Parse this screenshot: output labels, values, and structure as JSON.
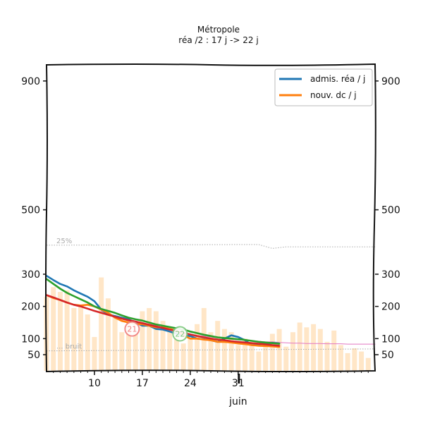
{
  "chart_data": {
    "type": "line",
    "title": "Métropole",
    "subtitle": "réa /2 : 17 j -> 22 j",
    "ylim": [
      0,
      950
    ],
    "xlim": [
      3,
      51
    ],
    "y_ticks": [
      50,
      100,
      200,
      300,
      500,
      900
    ],
    "x_ticks": [
      {
        "x": 10,
        "label": "10"
      },
      {
        "x": 17,
        "label": "17"
      },
      {
        "x": 24,
        "label": "24"
      },
      {
        "x": 31,
        "label": "31"
      }
    ],
    "month_label": {
      "x": 31,
      "label": "juin"
    },
    "legend": {
      "position": "top-right",
      "entries": [
        {
          "label": "admis. réa / j",
          "color": "#1f77b4"
        },
        {
          "label": "nouv. dc / j",
          "color": "#ff7f0e"
        }
      ]
    },
    "reference_lines": [
      {
        "label": "25%",
        "color": "#aaaaaa"
      },
      {
        "label": "bruit",
        "color": "#aaaaaa"
      }
    ],
    "threshold_25": {
      "x": [
        3,
        31,
        34,
        36,
        38,
        51
      ],
      "y": [
        390,
        392,
        392,
        380,
        385,
        385
      ]
    },
    "threshold_noise": {
      "x": [
        3,
        51
      ],
      "y": [
        62,
        68
      ]
    },
    "bars": {
      "color": "#ffe2bd",
      "x": [
        3,
        4,
        5,
        6,
        7,
        8,
        9,
        10,
        11,
        12,
        13,
        14,
        15,
        16,
        17,
        18,
        19,
        20,
        21,
        22,
        23,
        24,
        25,
        26,
        27,
        28,
        29,
        30,
        31,
        32,
        33,
        34,
        35,
        36,
        37,
        38,
        39,
        40,
        41,
        42,
        43,
        44,
        45,
        46,
        47,
        48,
        49,
        50
      ],
      "values": [
        230,
        260,
        245,
        250,
        195,
        200,
        175,
        105,
        290,
        225,
        165,
        120,
        160,
        120,
        185,
        195,
        185,
        155,
        135,
        110,
        85,
        115,
        145,
        195,
        120,
        155,
        130,
        120,
        80,
        100,
        85,
        60,
        85,
        115,
        130,
        75,
        120,
        150,
        135,
        145,
        130,
        90,
        125,
        80,
        55,
        70,
        60,
        40
      ]
    },
    "series": [
      {
        "name": "admis. réa / j",
        "color": "#1f77b4",
        "x": [
          3,
          4,
          5,
          6,
          7,
          8,
          9,
          10,
          11,
          12,
          13,
          14,
          15,
          16,
          17,
          18,
          19,
          20,
          21,
          22,
          23,
          24,
          25,
          26,
          27,
          28,
          29,
          30,
          31,
          32,
          33,
          34,
          35,
          36,
          37
        ],
        "y": [
          295,
          282,
          270,
          262,
          250,
          240,
          230,
          216,
          190,
          175,
          170,
          165,
          160,
          150,
          140,
          140,
          130,
          128,
          122,
          115,
          110,
          108,
          100,
          98,
          95,
          90,
          100,
          110,
          105,
          95,
          80,
          82,
          85,
          87,
          85
        ]
      },
      {
        "name": "nouv. dc / j",
        "color": "#ff7f0e",
        "x": [
          3,
          4,
          5,
          6,
          7,
          8,
          9,
          10,
          11,
          12,
          13,
          14,
          15,
          16,
          17,
          18,
          19,
          20,
          21,
          22,
          23,
          24,
          25,
          26,
          27,
          28,
          29,
          30,
          31,
          32,
          33,
          34,
          35,
          36,
          37
        ],
        "y": [
          235,
          226,
          220,
          212,
          205,
          203,
          205,
          200,
          190,
          180,
          165,
          155,
          150,
          145,
          145,
          140,
          135,
          135,
          130,
          125,
          110,
          100,
          100,
          97,
          95,
          90,
          90,
          88,
          85,
          83,
          80,
          78,
          77,
          76,
          74
        ]
      },
      {
        "color": "#2ca02c",
        "x": [
          3,
          4,
          5,
          6,
          7,
          8,
          9,
          10,
          11,
          12,
          13,
          14,
          15,
          16,
          17,
          18,
          19,
          20,
          21,
          22,
          23,
          24,
          25,
          26,
          27,
          28,
          29,
          30,
          31,
          32,
          33,
          34,
          35,
          36,
          37
        ],
        "y": [
          285,
          270,
          255,
          242,
          232,
          222,
          212,
          200,
          192,
          186,
          180,
          172,
          165,
          160,
          156,
          150,
          144,
          140,
          136,
          132,
          128,
          122,
          117,
          112,
          108,
          104,
          102,
          100,
          98,
          96,
          93,
          90,
          88,
          86,
          84
        ]
      },
      {
        "color": "#d62728",
        "x": [
          3,
          4,
          5,
          6,
          7,
          8,
          9,
          10,
          11,
          12,
          13,
          14,
          15,
          16,
          17,
          18,
          19,
          20,
          21,
          22,
          23,
          24,
          25,
          26,
          27,
          28,
          29,
          30,
          31,
          32,
          33,
          34,
          35,
          36,
          37
        ],
        "y": [
          235,
          228,
          220,
          212,
          205,
          200,
          193,
          186,
          180,
          174,
          168,
          162,
          157,
          153,
          148,
          143,
          138,
          133,
          128,
          123,
          118,
          113,
          108,
          104,
          100,
          97,
          95,
          92,
          90,
          88,
          86,
          84,
          82,
          80,
          78
        ]
      },
      {
        "color": "#e377c2",
        "x": [
          11,
          12,
          13,
          14,
          15,
          16,
          17,
          18,
          19,
          20,
          21,
          22,
          23,
          24,
          25,
          26,
          27,
          28,
          29,
          30,
          31,
          32,
          33,
          34,
          35,
          36,
          37,
          38,
          39,
          40,
          41,
          42,
          43,
          44,
          45,
          46,
          47,
          48,
          49,
          50,
          51
        ],
        "y": [
          185,
          180,
          170,
          165,
          160,
          155,
          150,
          145,
          140,
          135,
          130,
          125,
          120,
          115,
          110,
          108,
          105,
          102,
          100,
          98,
          96,
          95,
          94,
          92,
          90,
          90,
          88,
          87,
          86,
          86,
          85,
          85,
          85,
          84,
          84,
          84,
          83,
          83,
          83,
          83,
          83
        ]
      }
    ],
    "badges": [
      {
        "label": "21",
        "x": 15.5,
        "y": 130,
        "color": "#f08080"
      },
      {
        "label": "22",
        "x": 22.5,
        "y": 115,
        "color": "#7fc97f"
      }
    ]
  }
}
